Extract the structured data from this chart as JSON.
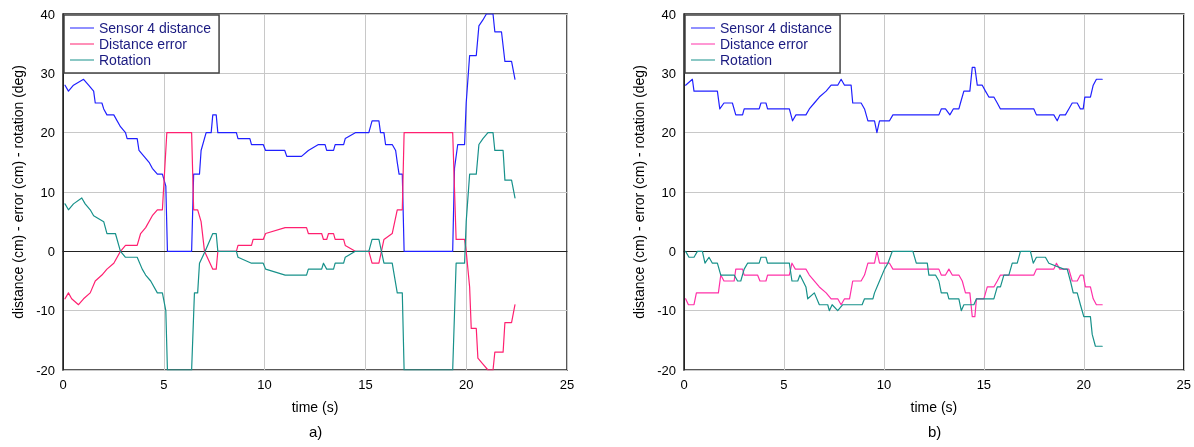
{
  "chart_data": [
    {
      "type": "line",
      "xlabel": "time (s)",
      "ylabel": "distance (cm) - error (cm) - rotation (deg)",
      "annotations": [
        "a)"
      ],
      "xlim": [
        0,
        25
      ],
      "xticks": [
        0,
        5,
        10,
        15,
        20,
        25
      ],
      "ylim": [
        -20,
        40
      ],
      "yticks": [
        -20,
        -10,
        0,
        10,
        20,
        30,
        40
      ],
      "grid": true,
      "legend": "top left",
      "marker": "none",
      "line_style": "solid",
      "series": [
        {
          "name": "Sensor 4 distance",
          "color": "#2020ff",
          "x": [
            0.1,
            0.27,
            0.52,
            1.02,
            1.27,
            1.52,
            1.6,
            1.93,
            2.02,
            2.18,
            2.52,
            2.85,
            3.1,
            3.18,
            3.68,
            3.77,
            4.02,
            4.27,
            4.43,
            4.68,
            4.93,
            5.1,
            5.18,
            6.38,
            6.48,
            6.77,
            6.85,
            7.1,
            7.35,
            7.43,
            7.6,
            7.68,
            8.6,
            8.68,
            9.27,
            9.35,
            9.93,
            10.05,
            11.0,
            11.1,
            11.83,
            12.17,
            12.67,
            13.0,
            13.08,
            13.42,
            13.5,
            13.92,
            14.0,
            14.5,
            15.17,
            15.33,
            15.67,
            15.75,
            15.92,
            16.0,
            16.33,
            16.5,
            16.58,
            16.67,
            16.83,
            16.92,
            19.33,
            19.42,
            19.58,
            19.92,
            20.0,
            20.17,
            20.5,
            20.63,
            20.83,
            21.0,
            21.33,
            21.42,
            21.75,
            21.92,
            22.25,
            22.42
          ],
          "values": [
            28,
            27,
            28,
            29,
            28,
            27,
            25,
            25,
            24,
            23,
            23,
            21,
            20,
            19,
            19,
            17,
            16,
            15,
            14,
            13,
            13,
            11,
            0,
            0,
            13,
            13,
            17,
            20,
            20,
            23,
            23,
            20,
            20,
            19,
            19,
            18,
            18,
            17,
            17,
            16,
            16,
            17,
            18,
            18,
            17,
            17,
            18,
            18,
            19,
            20,
            20,
            22,
            22,
            20,
            20,
            18,
            18,
            17,
            15,
            13,
            13,
            0,
            0,
            14,
            18,
            18,
            25,
            33,
            33,
            38,
            39,
            40,
            40,
            37,
            37,
            32,
            32,
            29
          ]
        },
        {
          "name": "Distance error",
          "color": "#ff2070",
          "x": [
            0.1,
            0.27,
            0.43,
            0.77,
            1.02,
            1.35,
            1.6,
            1.93,
            2.18,
            2.52,
            2.85,
            3.1,
            3.68,
            3.85,
            4.1,
            4.43,
            4.68,
            4.93,
            5.15,
            6.38,
            6.48,
            6.68,
            6.85,
            7.02,
            7.43,
            7.6,
            7.68,
            8.6,
            8.68,
            9.35,
            9.43,
            9.93,
            10.05,
            11.02,
            11.83,
            12.08,
            12.17,
            12.83,
            12.92,
            13.08,
            13.17,
            13.42,
            13.5,
            13.92,
            14.0,
            14.5,
            15.17,
            15.33,
            15.67,
            15.92,
            16.33,
            16.58,
            16.83,
            16.92,
            19.33,
            19.5,
            19.92,
            20.0,
            20.17,
            20.25,
            20.5,
            20.58,
            20.83,
            21.08,
            21.33,
            21.42,
            21.83,
            21.92,
            22.25,
            22.42
          ],
          "values": [
            -8,
            -7,
            -8,
            -9,
            -8,
            -7,
            -5,
            -4,
            -3,
            -2,
            0,
            1,
            1,
            3,
            4,
            6,
            7,
            7,
            20,
            20,
            7,
            7,
            5,
            0,
            -3,
            -3,
            0,
            0,
            1,
            1,
            2,
            2,
            3,
            4,
            4,
            4,
            3,
            3,
            2,
            2,
            3,
            3,
            2,
            2,
            1,
            0,
            0,
            -2,
            -2,
            2,
            3,
            7,
            7,
            20,
            20,
            2,
            2,
            0,
            -6,
            -13,
            -13,
            -18,
            -19,
            -20,
            -20,
            -17,
            -17,
            -12,
            -12,
            -9
          ]
        },
        {
          "name": "Rotation",
          "color": "#17918a",
          "x": [
            0.1,
            0.27,
            0.52,
            0.93,
            1.1,
            1.35,
            1.52,
            2.02,
            2.18,
            2.6,
            2.85,
            3.1,
            3.68,
            3.93,
            4.1,
            4.35,
            4.68,
            4.93,
            5.1,
            5.18,
            6.38,
            6.52,
            6.68,
            6.77,
            7.05,
            7.43,
            7.6,
            7.68,
            8.6,
            8.68,
            9.35,
            9.93,
            10.05,
            11.02,
            11.83,
            12.08,
            12.17,
            12.83,
            12.92,
            13.08,
            13.42,
            13.5,
            13.92,
            14.0,
            14.5,
            15.17,
            15.33,
            15.67,
            15.92,
            16.33,
            16.58,
            16.83,
            16.92,
            19.33,
            19.5,
            19.92,
            20.0,
            20.17,
            20.5,
            20.63,
            20.83,
            21.08,
            21.33,
            21.42,
            21.83,
            21.92,
            22.25,
            22.42
          ],
          "values": [
            8,
            7,
            8,
            9,
            8,
            7,
            6,
            5,
            3,
            3,
            0,
            -1,
            -1,
            -3,
            -4,
            -5,
            -7,
            -7,
            -10,
            -20,
            -20,
            -7,
            -7,
            -2,
            0,
            3,
            3,
            0,
            0,
            -1,
            -2,
            -2,
            -3,
            -4,
            -4,
            -4,
            -3,
            -3,
            -2,
            -3,
            -3,
            -2,
            -2,
            -1,
            0,
            0,
            2,
            2,
            -2,
            -2,
            -7,
            -7,
            -20,
            -20,
            -2,
            -2,
            5,
            13,
            13,
            18,
            19,
            20,
            20,
            17,
            17,
            12,
            12,
            9
          ]
        }
      ]
    },
    {
      "type": "line",
      "xlabel": "time (s)",
      "ylabel": "distance (cm) - error (cm) - rotation (deg)",
      "annotations": [
        "b)"
      ],
      "xlim": [
        0,
        25
      ],
      "xticks": [
        0,
        5,
        10,
        15,
        20,
        25
      ],
      "ylim": [
        -20,
        40
      ],
      "yticks": [
        -20,
        -10,
        0,
        10,
        20,
        30,
        40
      ],
      "grid": true,
      "legend": "top left",
      "marker": "none",
      "line_style": "solid",
      "series": [
        {
          "name": "Sensor 4 distance",
          "color": "#2020ff",
          "x": [
            0.08,
            0.42,
            0.5,
            1.67,
            1.79,
            2.0,
            2.42,
            2.59,
            2.93,
            3.01,
            3.76,
            3.85,
            4.1,
            4.18,
            5.27,
            5.43,
            5.6,
            6.1,
            6.27,
            6.52,
            6.77,
            7.11,
            7.36,
            7.69,
            7.86,
            8.03,
            8.36,
            8.44,
            8.86,
            9.03,
            9.2,
            9.53,
            9.65,
            9.78,
            10.28,
            10.45,
            11.83,
            12.75,
            12.87,
            13.08,
            13.3,
            13.47,
            13.75,
            13.83,
            14.0,
            14.3,
            14.42,
            14.55,
            14.67,
            14.92,
            15.08,
            15.25,
            15.5,
            15.67,
            15.83,
            17.5,
            17.63,
            18.5,
            18.67,
            18.8,
            19.08,
            19.25,
            19.42,
            19.67,
            19.83,
            19.97,
            20.05,
            20.33,
            20.47,
            20.63,
            20.92
          ],
          "values": [
            28,
            29,
            27,
            27,
            24,
            25,
            25,
            23,
            23,
            24,
            24,
            25,
            25,
            24,
            24,
            22,
            23,
            23,
            24,
            25,
            26,
            27,
            28,
            28,
            29,
            28,
            28,
            25,
            25,
            24,
            22,
            22,
            20,
            22,
            22,
            23,
            23,
            23,
            24,
            24,
            23,
            24,
            24,
            25,
            27,
            27,
            31,
            31,
            28,
            28,
            27,
            26,
            26,
            25,
            24,
            24,
            23,
            23,
            22,
            23,
            23,
            24,
            25,
            25,
            24,
            24,
            26,
            26,
            28,
            29,
            29
          ]
        },
        {
          "name": "Distance error",
          "color": "#ff30a8",
          "x": [
            0.08,
            0.22,
            0.5,
            0.62,
            1.72,
            1.84,
            2.0,
            2.51,
            2.59,
            2.93,
            3.01,
            3.68,
            3.8,
            4.1,
            4.18,
            5.27,
            5.4,
            5.57,
            6.1,
            6.27,
            6.77,
            7.11,
            7.36,
            7.69,
            7.86,
            8.03,
            8.28,
            8.44,
            8.86,
            9.03,
            9.2,
            9.53,
            9.65,
            9.78,
            10.28,
            10.45,
            11.83,
            12.75,
            12.87,
            13.08,
            13.25,
            13.42,
            13.75,
            13.92,
            14.08,
            14.3,
            14.42,
            14.55,
            14.63,
            15.0,
            15.17,
            15.5,
            15.67,
            15.83,
            17.5,
            17.63,
            18.5,
            18.63,
            18.8,
            19.25,
            19.42,
            19.67,
            19.83,
            19.97,
            20.08,
            20.33,
            20.47,
            20.63,
            20.92
          ],
          "values": [
            -8,
            -9,
            -9,
            -7,
            -7,
            -4,
            -5,
            -5,
            -3,
            -3,
            -4,
            -4,
            -5,
            -5,
            -4,
            -4,
            -2,
            -3,
            -3,
            -4,
            -6,
            -7,
            -8,
            -8,
            -9,
            -8,
            -8,
            -5,
            -5,
            -4,
            -2,
            -2,
            0,
            -2,
            -2,
            -3,
            -3,
            -3,
            -4,
            -4,
            -3,
            -4,
            -4,
            -5,
            -7,
            -7,
            -11,
            -11,
            -8,
            -8,
            -6,
            -6,
            -5,
            -4,
            -4,
            -3,
            -3,
            -2,
            -3,
            -3,
            -5,
            -5,
            -4,
            -4,
            -6,
            -6,
            -8,
            -9,
            -9
          ]
        },
        {
          "name": "Rotation",
          "color": "#17918a",
          "x": [
            0.08,
            0.25,
            0.5,
            0.67,
            0.92,
            1.05,
            1.25,
            1.42,
            1.67,
            1.84,
            2.51,
            2.68,
            2.84,
            3.01,
            3.18,
            3.76,
            3.85,
            4.1,
            4.18,
            5.27,
            5.4,
            5.69,
            5.8,
            6.1,
            6.19,
            6.52,
            6.77,
            7.19,
            7.27,
            7.41,
            7.69,
            7.94,
            8.91,
            9.03,
            9.45,
            9.53,
            9.78,
            10.03,
            10.2,
            10.42,
            11.45,
            11.62,
            11.83,
            12.17,
            12.25,
            12.58,
            12.75,
            12.87,
            13.17,
            13.25,
            13.75,
            13.87,
            14.0,
            14.5,
            14.63,
            15.5,
            15.67,
            15.83,
            16.0,
            16.25,
            16.42,
            16.67,
            16.83,
            17.33,
            17.47,
            17.63,
            18.08,
            18.25,
            19.0,
            19.17,
            19.33,
            19.47,
            19.67,
            19.83,
            20.0,
            20.33,
            20.42,
            20.58,
            20.92
          ],
          "values": [
            0,
            -1,
            -1,
            0,
            0,
            -2,
            -1,
            -2,
            -2,
            -4,
            -4,
            -5,
            -5,
            -3,
            -2,
            -2,
            -1,
            -1,
            -2,
            -2,
            -5,
            -5,
            -4,
            -6,
            -8,
            -7,
            -9,
            -9,
            -10,
            -9,
            -10,
            -9,
            -9,
            -8,
            -8,
            -7,
            -5,
            -3,
            -2,
            0,
            0,
            -2,
            -2,
            -2,
            -4,
            -4,
            -5,
            -7,
            -7,
            -8,
            -8,
            -10,
            -9,
            -9,
            -8,
            -8,
            -6,
            -6,
            -4,
            -4,
            -2,
            -2,
            0,
            0,
            -2,
            -1,
            -1,
            -2,
            -3,
            -3,
            -5,
            -7,
            -7,
            -9,
            -11,
            -11,
            -14,
            -16,
            -16
          ]
        }
      ]
    }
  ]
}
